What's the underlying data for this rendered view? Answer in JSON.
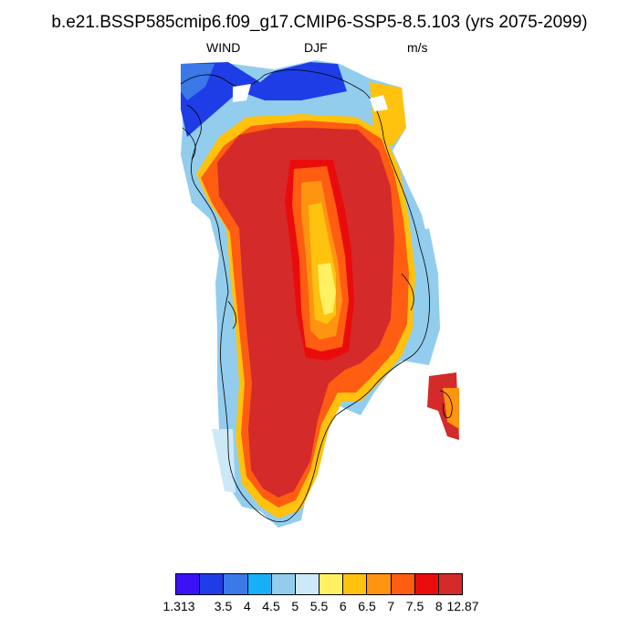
{
  "title": "b.e21.BSSP585cmip6.f09_g17.CMIP6-SSP5-8.5.103 (yrs 2075-2099)",
  "left_label": "WIND",
  "center_label": "DJF",
  "right_label": "m/s",
  "colorbar": {
    "colors": [
      "#3a12f5",
      "#1f3de6",
      "#3b78e8",
      "#17b0f7",
      "#92cdee",
      "#cde9f7",
      "#fff064",
      "#ffc20e",
      "#ff9410",
      "#ff5d12",
      "#ea0c0c",
      "#d42a2a"
    ],
    "labels": [
      "1.313",
      "3.5",
      "4",
      "4.5",
      "5",
      "5.5",
      "6",
      "6.5",
      "7",
      "7.5",
      "8",
      "12.87"
    ]
  }
}
